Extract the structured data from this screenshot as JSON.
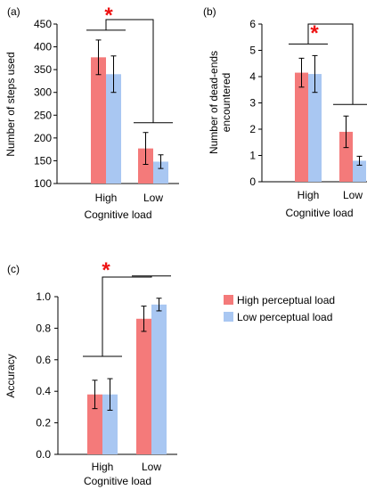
{
  "legend": {
    "items": [
      {
        "label": "High perceptual load",
        "color": "#f47a7a"
      },
      {
        "label": "Low perceptual load",
        "color": "#a9c7f2"
      }
    ]
  },
  "chart_data": [
    {
      "type": "bar",
      "panel_label": "(a)",
      "title": "",
      "xlabel": "Cognitive load",
      "ylabel": "Number of steps used",
      "categories": [
        "High",
        "Low"
      ],
      "ylim": [
        100,
        450
      ],
      "yticks": [
        100,
        150,
        200,
        250,
        300,
        350,
        400,
        450
      ],
      "series": [
        {
          "name": "High perceptual load",
          "color": "#f47a7a",
          "values": [
            377,
            177
          ],
          "errors": [
            38,
            35
          ]
        },
        {
          "name": "Low perceptual load",
          "color": "#a9c7f2",
          "values": [
            340,
            148
          ],
          "errors": [
            40,
            15
          ]
        }
      ],
      "annotation": "*",
      "grid": false
    },
    {
      "type": "bar",
      "panel_label": "(b)",
      "title": "",
      "xlabel": "Cognitive load",
      "ylabel": "Number of dead-ends encountered",
      "categories": [
        "High",
        "Low"
      ],
      "ylim": [
        0,
        6
      ],
      "yticks": [
        0,
        1,
        2,
        3,
        4,
        5,
        6
      ],
      "series": [
        {
          "name": "High perceptual load",
          "color": "#f47a7a",
          "values": [
            4.15,
            1.9
          ],
          "errors": [
            0.55,
            0.6
          ]
        },
        {
          "name": "Low perceptual load",
          "color": "#a9c7f2",
          "values": [
            4.1,
            0.8
          ],
          "errors": [
            0.7,
            0.17
          ]
        }
      ],
      "annotation": "*",
      "grid": false
    },
    {
      "type": "bar",
      "panel_label": "(c)",
      "title": "",
      "xlabel": "Cognitive load",
      "ylabel": "Accuracy",
      "categories": [
        "High",
        "Low"
      ],
      "ylim": [
        0,
        1
      ],
      "yticks": [
        "0.0",
        "0.2",
        "0.4",
        "0.6",
        "0.8",
        "1.0"
      ],
      "series": [
        {
          "name": "High perceptual load",
          "color": "#f47a7a",
          "values": [
            0.38,
            0.86
          ],
          "errors": [
            0.09,
            0.08
          ]
        },
        {
          "name": "Low perceptual load",
          "color": "#a9c7f2",
          "values": [
            0.38,
            0.95
          ],
          "errors": [
            0.1,
            0.04
          ]
        }
      ],
      "annotation": "*",
      "grid": false
    }
  ]
}
